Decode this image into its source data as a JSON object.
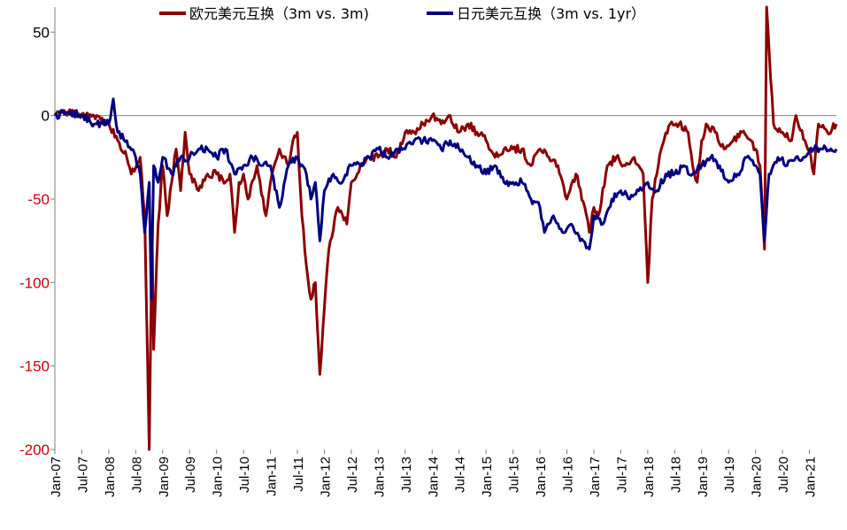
{
  "chart_data": {
    "type": "line",
    "title": "",
    "xlabel": "",
    "ylabel": "",
    "x_range": [
      "2007-01",
      "2021-07"
    ],
    "ylim": [
      -200,
      65
    ],
    "y_ticks": [
      50,
      0,
      -50,
      -100,
      -150,
      -200
    ],
    "y_tick_labels": [
      "50",
      "0",
      "-50",
      "-100",
      "-150",
      "-200"
    ],
    "x_ticks": [
      "2007-01",
      "2007-07",
      "2008-01",
      "2008-07",
      "2009-01",
      "2009-07",
      "2010-01",
      "2010-07",
      "2011-01",
      "2011-07",
      "2012-01",
      "2012-07",
      "2013-01",
      "2013-07",
      "2014-01",
      "2014-07",
      "2015-01",
      "2015-07",
      "2016-01",
      "2016-07",
      "2017-01",
      "2017-07",
      "2018-01",
      "2018-07",
      "2019-01",
      "2019-07",
      "2020-01",
      "2020-07",
      "2021-01"
    ],
    "x_tick_labels": [
      "Jan-07",
      "Jul-07",
      "Jan-08",
      "Jul-08",
      "Jan-09",
      "Jul-09",
      "Jan-10",
      "Jul-10",
      "Jan-11",
      "Jul-11",
      "Jan-12",
      "Jul-12",
      "Jan-13",
      "Jul-13",
      "Jan-14",
      "Jul-14",
      "Jan-15",
      "Jul-15",
      "Jan-16",
      "Jul-16",
      "Jan-17",
      "Jul-17",
      "Jan-18",
      "Jul-18",
      "Jan-19",
      "Jul-19",
      "Jan-20",
      "Jul-20",
      "Jan-21"
    ],
    "grid": false,
    "legend_position": "top",
    "negative_tick_color": "#cc0000",
    "positive_tick_color": "#000000",
    "series": [
      {
        "name": "欧元美元互换（3m vs. 3m)",
        "color": "#8b0000",
        "points": [
          [
            "2007-01",
            0
          ],
          [
            "2007-04",
            2
          ],
          [
            "2007-07",
            1
          ],
          [
            "2007-10",
            -2
          ],
          [
            "2008-01",
            -5
          ],
          [
            "2008-03",
            -15
          ],
          [
            "2008-05",
            -25
          ],
          [
            "2008-06",
            -35
          ],
          [
            "2008-08",
            -25
          ],
          [
            "2008-09",
            -60
          ],
          [
            "2008-10",
            -200
          ],
          [
            "2008-10-20",
            -70
          ],
          [
            "2008-11",
            -140
          ],
          [
            "2008-12",
            -65
          ],
          [
            "2009-01",
            -30
          ],
          [
            "2009-02",
            -60
          ],
          [
            "2009-03",
            -40
          ],
          [
            "2009-04",
            -20
          ],
          [
            "2009-05",
            -45
          ],
          [
            "2009-06",
            -10
          ],
          [
            "2009-07",
            -35
          ],
          [
            "2009-09",
            -45
          ],
          [
            "2009-11",
            -35
          ],
          [
            "2010-01",
            -35
          ],
          [
            "2010-03",
            -40
          ],
          [
            "2010-04",
            -35
          ],
          [
            "2010-05",
            -70
          ],
          [
            "2010-06",
            -40
          ],
          [
            "2010-07",
            -35
          ],
          [
            "2010-08",
            -50
          ],
          [
            "2010-10",
            -30
          ],
          [
            "2010-12",
            -60
          ],
          [
            "2011-01",
            -40
          ],
          [
            "2011-03",
            -20
          ],
          [
            "2011-05",
            -30
          ],
          [
            "2011-06",
            -15
          ],
          [
            "2011-07",
            -10
          ],
          [
            "2011-08",
            -60
          ],
          [
            "2011-09",
            -90
          ],
          [
            "2011-10",
            -110
          ],
          [
            "2011-11",
            -100
          ],
          [
            "2011-12",
            -155
          ],
          [
            "2012-01",
            -115
          ],
          [
            "2012-02",
            -80
          ],
          [
            "2012-04",
            -55
          ],
          [
            "2012-06",
            -65
          ],
          [
            "2012-07",
            -40
          ],
          [
            "2012-09",
            -30
          ],
          [
            "2012-11",
            -25
          ],
          [
            "2013-01",
            -25
          ],
          [
            "2013-03",
            -20
          ],
          [
            "2013-05",
            -25
          ],
          [
            "2013-07",
            -10
          ],
          [
            "2013-09",
            -10
          ],
          [
            "2013-11",
            -5
          ],
          [
            "2014-01",
            0
          ],
          [
            "2014-03",
            -5
          ],
          [
            "2014-05",
            0
          ],
          [
            "2014-07",
            -10
          ],
          [
            "2014-09",
            -5
          ],
          [
            "2014-11",
            -10
          ],
          [
            "2015-01",
            -15
          ],
          [
            "2015-03",
            -25
          ],
          [
            "2015-05",
            -20
          ],
          [
            "2015-07",
            -20
          ],
          [
            "2015-09",
            -20
          ],
          [
            "2015-11",
            -30
          ],
          [
            "2016-01",
            -20
          ],
          [
            "2016-03",
            -25
          ],
          [
            "2016-05",
            -30
          ],
          [
            "2016-07",
            -50
          ],
          [
            "2016-09",
            -35
          ],
          [
            "2016-11",
            -55
          ],
          [
            "2016-12",
            -70
          ],
          [
            "2017-01",
            -55
          ],
          [
            "2017-02",
            -60
          ],
          [
            "2017-04",
            -30
          ],
          [
            "2017-06",
            -25
          ],
          [
            "2017-08",
            -30
          ],
          [
            "2017-10",
            -25
          ],
          [
            "2017-11",
            -30
          ],
          [
            "2017-12",
            -35
          ],
          [
            "2018-01",
            -100
          ],
          [
            "2018-02",
            -50
          ],
          [
            "2018-04",
            -20
          ],
          [
            "2018-06",
            -5
          ],
          [
            "2018-08",
            -5
          ],
          [
            "2018-10",
            -10
          ],
          [
            "2018-11",
            -30
          ],
          [
            "2018-12",
            -40
          ],
          [
            "2019-01",
            -15
          ],
          [
            "2019-02",
            -5
          ],
          [
            "2019-04",
            -10
          ],
          [
            "2019-06",
            -20
          ],
          [
            "2019-08",
            -15
          ],
          [
            "2019-10",
            -10
          ],
          [
            "2019-12",
            -15
          ],
          [
            "2020-01",
            -20
          ],
          [
            "2020-02",
            -30
          ],
          [
            "2020-03",
            -80
          ],
          [
            "2020-03-15",
            65
          ],
          [
            "2020-04",
            40
          ],
          [
            "2020-05",
            -5
          ],
          [
            "2020-07",
            -10
          ],
          [
            "2020-09",
            -15
          ],
          [
            "2020-10",
            0
          ],
          [
            "2020-12",
            -15
          ],
          [
            "2021-01",
            -20
          ],
          [
            "2021-02",
            -35
          ],
          [
            "2021-03",
            -5
          ],
          [
            "2021-05",
            -10
          ],
          [
            "2021-07",
            -5
          ]
        ]
      },
      {
        "name": "日元美元互换（3m vs. 1yr）",
        "color": "#000080",
        "points": [
          [
            "2007-01",
            0
          ],
          [
            "2007-04",
            2
          ],
          [
            "2007-07",
            0
          ],
          [
            "2007-10",
            -5
          ],
          [
            "2008-01",
            -5
          ],
          [
            "2008-02",
            10
          ],
          [
            "2008-03",
            -10
          ],
          [
            "2008-05",
            -15
          ],
          [
            "2008-07",
            -25
          ],
          [
            "2008-08",
            -35
          ],
          [
            "2008-09",
            -70
          ],
          [
            "2008-10",
            -40
          ],
          [
            "2008-10-15",
            -110
          ],
          [
            "2008-11",
            -30
          ],
          [
            "2008-12",
            -40
          ],
          [
            "2009-01",
            -25
          ],
          [
            "2009-03",
            -35
          ],
          [
            "2009-05",
            -25
          ],
          [
            "2009-07",
            -25
          ],
          [
            "2009-09",
            -20
          ],
          [
            "2009-11",
            -20
          ],
          [
            "2010-01",
            -25
          ],
          [
            "2010-03",
            -20
          ],
          [
            "2010-05",
            -35
          ],
          [
            "2010-07",
            -30
          ],
          [
            "2010-09",
            -25
          ],
          [
            "2010-11",
            -30
          ],
          [
            "2011-01",
            -30
          ],
          [
            "2011-03",
            -55
          ],
          [
            "2011-05",
            -30
          ],
          [
            "2011-07",
            -25
          ],
          [
            "2011-09",
            -35
          ],
          [
            "2011-10",
            -50
          ],
          [
            "2011-11",
            -40
          ],
          [
            "2011-12",
            -75
          ],
          [
            "2012-01",
            -45
          ],
          [
            "2012-03",
            -35
          ],
          [
            "2012-05",
            -40
          ],
          [
            "2012-07",
            -30
          ],
          [
            "2012-09",
            -30
          ],
          [
            "2012-11",
            -25
          ],
          [
            "2013-01",
            -20
          ],
          [
            "2013-03",
            -25
          ],
          [
            "2013-05",
            -20
          ],
          [
            "2013-07",
            -20
          ],
          [
            "2013-09",
            -15
          ],
          [
            "2013-11",
            -15
          ],
          [
            "2014-01",
            -15
          ],
          [
            "2014-03",
            -20
          ],
          [
            "2014-05",
            -15
          ],
          [
            "2014-07",
            -20
          ],
          [
            "2014-09",
            -25
          ],
          [
            "2014-11",
            -30
          ],
          [
            "2015-01",
            -35
          ],
          [
            "2015-03",
            -30
          ],
          [
            "2015-05",
            -40
          ],
          [
            "2015-07",
            -40
          ],
          [
            "2015-09",
            -40
          ],
          [
            "2015-11",
            -50
          ],
          [
            "2016-01",
            -55
          ],
          [
            "2016-02",
            -70
          ],
          [
            "2016-04",
            -60
          ],
          [
            "2016-06",
            -70
          ],
          [
            "2016-08",
            -65
          ],
          [
            "2016-10",
            -75
          ],
          [
            "2016-12",
            -80
          ],
          [
            "2017-01",
            -60
          ],
          [
            "2017-03",
            -65
          ],
          [
            "2017-05",
            -50
          ],
          [
            "2017-07",
            -45
          ],
          [
            "2017-09",
            -50
          ],
          [
            "2017-11",
            -45
          ],
          [
            "2018-01",
            -40
          ],
          [
            "2018-03",
            -45
          ],
          [
            "2018-05",
            -35
          ],
          [
            "2018-07",
            -35
          ],
          [
            "2018-09",
            -30
          ],
          [
            "2018-11",
            -35
          ],
          [
            "2019-01",
            -30
          ],
          [
            "2019-03",
            -25
          ],
          [
            "2019-05",
            -30
          ],
          [
            "2019-07",
            -40
          ],
          [
            "2019-09",
            -35
          ],
          [
            "2019-11",
            -25
          ],
          [
            "2020-01",
            -30
          ],
          [
            "2020-02",
            -35
          ],
          [
            "2020-03",
            -75
          ],
          [
            "2020-04",
            -35
          ],
          [
            "2020-06",
            -25
          ],
          [
            "2020-08",
            -30
          ],
          [
            "2020-10",
            -25
          ],
          [
            "2020-12",
            -25
          ],
          [
            "2021-02",
            -20
          ],
          [
            "2021-04",
            -20
          ],
          [
            "2021-07",
            -20
          ]
        ]
      }
    ]
  }
}
